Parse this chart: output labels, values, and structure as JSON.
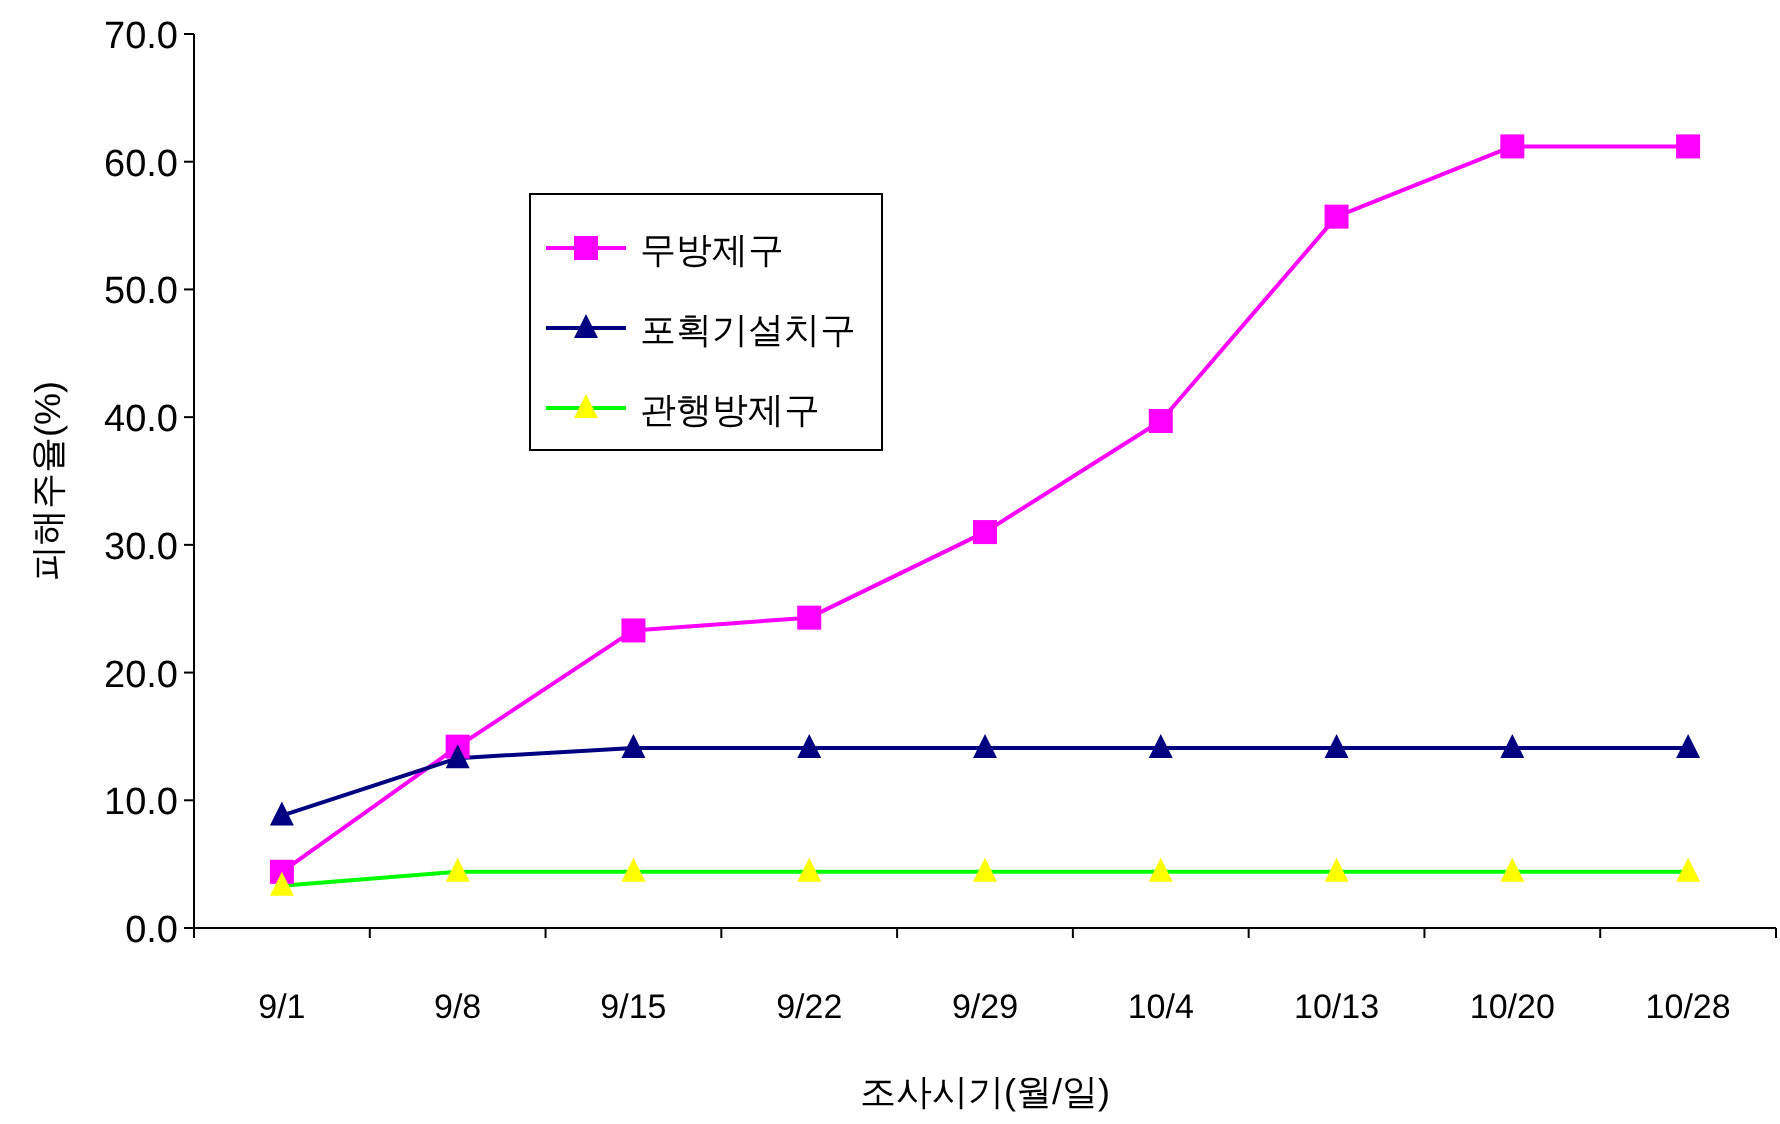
{
  "chart_data": {
    "type": "line",
    "xlabel": "조사시기(월/일)",
    "ylabel": "피해주율(%)",
    "categories": [
      "9/1",
      "9/8",
      "9/15",
      "9/22",
      "9/29",
      "10/4",
      "10/13",
      "10/20",
      "10/28"
    ],
    "series": [
      {
        "name": "무방제구",
        "color": "#ff00ff",
        "marker": "square",
        "values": [
          4.4,
          14.2,
          23.3,
          24.3,
          31.0,
          39.7,
          55.7,
          61.2,
          61.2
        ]
      },
      {
        "name": "포획기설치구",
        "color": "#000080",
        "marker": "triangle",
        "values": [
          8.8,
          13.3,
          14.1,
          14.1,
          14.1,
          14.1,
          14.1,
          14.1,
          14.1
        ]
      },
      {
        "name": "관행방제구",
        "color": "#00ff00",
        "colors": [
          "#ffff00",
          "#ffff00",
          "#ffff00",
          "#ffff00",
          "#ffff00",
          "#ffff00",
          "#ffff00",
          "#ffff00",
          "#ffff00"
        ],
        "marker": "triangle",
        "values": [
          3.3,
          4.4,
          4.4,
          4.4,
          4.4,
          4.4,
          4.4,
          4.4,
          4.4
        ]
      }
    ],
    "ylim": [
      0,
      70
    ],
    "yticks": [
      {
        "value": 0,
        "label": "0.0"
      },
      {
        "value": 10,
        "label": "10.0"
      },
      {
        "value": 20,
        "label": "20.0"
      },
      {
        "value": 30,
        "label": "30.0"
      },
      {
        "value": 40,
        "label": "40.0"
      },
      {
        "value": 50,
        "label": "50.0"
      },
      {
        "value": 60,
        "label": "60.0"
      },
      {
        "value": 70,
        "label": "70.0"
      }
    ],
    "grid": false,
    "legend": "top left",
    "line_style": "solid"
  }
}
